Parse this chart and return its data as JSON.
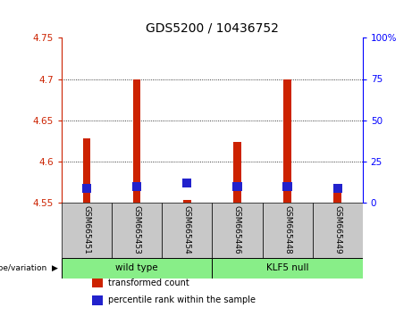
{
  "title": "GDS5200 / 10436752",
  "samples": [
    "GSM665451",
    "GSM665453",
    "GSM665454",
    "GSM665446",
    "GSM665448",
    "GSM665449"
  ],
  "transformed_counts": [
    4.628,
    4.7,
    4.553,
    4.623,
    4.7,
    4.565
  ],
  "percentile_ranks": [
    7,
    8,
    10,
    8,
    8,
    7
  ],
  "bar_bottom": 4.55,
  "ylim_left": [
    4.55,
    4.75
  ],
  "ylim_right": [
    0,
    100
  ],
  "yticks_left": [
    4.55,
    4.6,
    4.65,
    4.7,
    4.75
  ],
  "yticks_right": [
    0,
    25,
    50,
    75,
    100
  ],
  "ytick_labels_left": [
    "4.55",
    "4.6",
    "4.65",
    "4.7",
    "4.75"
  ],
  "ytick_labels_right": [
    "0",
    "25",
    "50",
    "75",
    "100%"
  ],
  "grid_yticks": [
    4.6,
    4.65,
    4.7
  ],
  "red_color": "#cc2200",
  "blue_color": "#2222cc",
  "bar_width": 0.15,
  "background_color": "#ffffff",
  "label_area_color": "#c8c8c8",
  "green_color": "#88ee88",
  "group_labels": [
    "wild type",
    "KLF5 null"
  ],
  "group_ranges": [
    [
      0,
      2
    ],
    [
      3,
      5
    ]
  ],
  "legend_items": [
    {
      "color": "#cc2200",
      "label": "transformed count"
    },
    {
      "color": "#2222cc",
      "label": "percentile rank within the sample"
    }
  ],
  "genotype_label": "genotype/variation"
}
